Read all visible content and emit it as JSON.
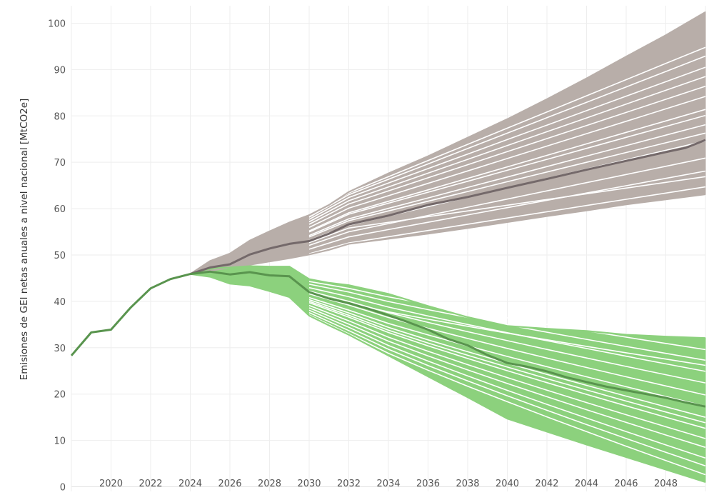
{
  "chart_data": {
    "type": "line",
    "title": "",
    "xlabel": "",
    "ylabel": "Emisiones de GEI netas anuales a nivel nacional [MtCO2e]",
    "xlim": [
      2018,
      2050
    ],
    "ylim": [
      -1,
      105
    ],
    "x_ticks": [
      "2020",
      "2022",
      "2024",
      "2026",
      "2028",
      "2030",
      "2032",
      "2034",
      "2036",
      "2038",
      "2040",
      "2042",
      "2044",
      "2046",
      "2048"
    ],
    "y_ticks": [
      "0",
      "10",
      "20",
      "30",
      "40",
      "50",
      "60",
      "70",
      "80",
      "90",
      "100"
    ],
    "grid": true,
    "legend": "none",
    "colors": {
      "baseline_band": "#b8aea9",
      "baseline_line": "#74696a",
      "mitigation_band": "#8cd17d",
      "mitigation_line": "#59944e",
      "historical": "#59944e"
    },
    "historical": {
      "x": [
        2018,
        2019,
        2020,
        2021,
        2022,
        2023,
        2024
      ],
      "y": [
        28.3,
        33.3,
        33.9,
        38.7,
        42.8,
        44.8,
        45.9
      ]
    },
    "bands": [
      {
        "color_key": "baseline_band",
        "x": [
          2024,
          2025,
          2026,
          2027,
          2028,
          2029,
          2030,
          2031,
          2032,
          2034,
          2036,
          2038,
          2040,
          2042,
          2044,
          2046,
          2048,
          2050
        ],
        "upper": [
          45.9,
          48.7,
          50.3,
          53.1,
          55.1,
          57.0,
          58.6,
          60.8,
          63.6,
          67.6,
          71.3,
          75.3,
          79.3,
          83.6,
          88.1,
          92.8,
          97.4,
          102.4
        ],
        "lower": [
          45.9,
          46.6,
          47.3,
          47.9,
          48.6,
          49.3,
          50.1,
          51.1,
          52.4,
          53.5,
          54.6,
          55.8,
          57.1,
          58.4,
          59.6,
          60.9,
          62.0,
          63.1
        ]
      },
      {
        "color_key": "mitigation_band",
        "x": [
          2024,
          2025,
          2026,
          2027,
          2028,
          2029,
          2030,
          2031,
          2032,
          2034,
          2036,
          2038,
          2040,
          2042,
          2044,
          2046,
          2048,
          2050
        ],
        "upper": [
          45.9,
          47.2,
          47.3,
          47.6,
          47.5,
          47.5,
          44.8,
          44.0,
          43.5,
          41.6,
          39.0,
          36.6,
          34.7,
          34.1,
          33.6,
          32.8,
          32.4,
          32.1
        ],
        "lower": [
          45.9,
          45.3,
          43.8,
          43.4,
          42.2,
          40.9,
          36.9,
          34.8,
          32.8,
          28.3,
          23.8,
          19.3,
          14.7,
          11.9,
          9.1,
          6.4,
          3.7,
          1.0
        ]
      }
    ],
    "white_lines": {
      "baseline": [
        [
          52.6,
          64.7
        ],
        [
          53.9,
          68.1
        ],
        [
          55.0,
          70.9
        ],
        [
          56.4,
          74.6
        ],
        [
          57.8,
          78.1
        ],
        [
          59.1,
          81.4
        ],
        [
          60.1,
          84.2
        ],
        [
          61.0,
          86.4
        ],
        [
          61.7,
          88.5
        ],
        [
          62.4,
          90.5
        ],
        [
          63.0,
          92.9
        ],
        [
          63.4,
          94.8
        ],
        [
          55.8,
          66.9
        ],
        [
          57.4,
          76.3
        ],
        [
          58.8,
          80.1
        ]
      ],
      "mitigation": [
        [
          42.8,
          29.6
        ],
        [
          42.0,
          27.3
        ],
        [
          41.0,
          24.9
        ],
        [
          40.0,
          22.4
        ],
        [
          39.2,
          19.8
        ],
        [
          38.1,
          17.4
        ],
        [
          37.5,
          15.0
        ],
        [
          36.6,
          12.6
        ],
        [
          35.8,
          10.4
        ],
        [
          35.1,
          8.5
        ],
        [
          34.4,
          6.2
        ],
        [
          33.7,
          4.5
        ],
        [
          33.0,
          2.6
        ],
        [
          39.6,
          26.2
        ],
        [
          37.0,
          13.8
        ]
      ]
    },
    "series": [
      {
        "color_key": "baseline_line",
        "x": [
          2024,
          2025,
          2026,
          2027,
          2028,
          2029,
          2030,
          2031,
          2032,
          2034,
          2036,
          2038,
          2040,
          2042,
          2044,
          2046,
          2048,
          2049,
          2050
        ],
        "values": [
          45.9,
          47.3,
          48.0,
          50.1,
          51.4,
          52.4,
          53.0,
          54.6,
          56.6,
          58.5,
          60.8,
          62.5,
          64.5,
          66.4,
          68.4,
          70.3,
          72.2,
          73.1,
          74.8
        ]
      },
      {
        "color_key": "mitigation_line",
        "x": [
          2024,
          2025,
          2026,
          2027,
          2028,
          2029,
          2030,
          2031,
          2032,
          2033,
          2034,
          2035,
          2036,
          2037,
          2038,
          2039,
          2040,
          2041,
          2042,
          2043,
          2044,
          2045,
          2046,
          2047,
          2048,
          2049,
          2050
        ],
        "values": [
          45.9,
          46.4,
          45.8,
          46.3,
          45.6,
          45.4,
          42.0,
          40.6,
          39.6,
          38.4,
          37.0,
          35.5,
          33.9,
          31.9,
          30.5,
          28.4,
          26.7,
          25.9,
          24.9,
          23.6,
          22.6,
          21.6,
          20.8,
          20.0,
          19.2,
          18.2,
          17.3
        ]
      }
    ]
  }
}
